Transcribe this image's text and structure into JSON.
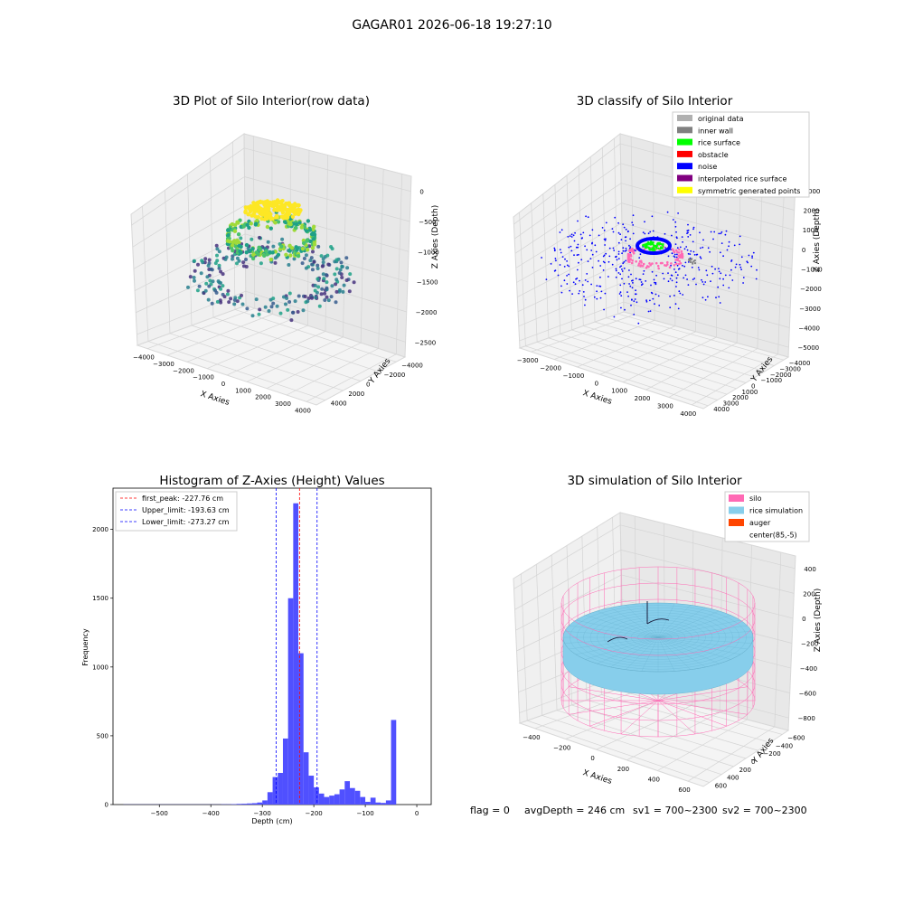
{
  "figure": {
    "suptitle": "GAGAR01 2026-06-18 19:27:10",
    "footer": {
      "flag": "flag = 0",
      "avg": "avgDepth = 246 cm",
      "sv1": "sv1 = 700~2300",
      "sv2": "sv2 = 700~2300"
    }
  },
  "colors": {
    "original": "#b0b0b0",
    "inner_wall": "#808080",
    "rice_surface": "#00ff00",
    "obstacle": "#ff0000",
    "noise": "#0000ff",
    "interp": "#800080",
    "symmetric": "#ffff00",
    "hist_bar": "#5050ff",
    "silo": "#ff69b4",
    "rice_sim": "#87ceeb",
    "auger": "#ff4500"
  },
  "chart_data": [
    {
      "id": "raw",
      "type": "scatter",
      "title": "3D Plot of Silo Interior(row data)",
      "xlabel": "X Axies",
      "ylabel": "Y Axies",
      "zlabel": "Z Axies (Depth)",
      "xticks": [
        "−4000",
        "−3000",
        "−2000",
        "−1000",
        "0",
        "1000",
        "2000",
        "3000",
        "4000"
      ],
      "yticks": [
        "−4000",
        "−2000",
        "0",
        "2000",
        "4000"
      ],
      "zticks": [
        "−2500",
        "−2000",
        "−1500",
        "−1000",
        "−500",
        "0"
      ],
      "xlim": [
        -4000,
        4500
      ],
      "ylim": [
        -4500,
        4500
      ],
      "zlim": [
        -2700,
        100
      ]
    },
    {
      "id": "classify",
      "type": "scatter",
      "title": "3D classify of Silo Interior",
      "xlabel": "X Axies",
      "ylabel": "Y Axies",
      "zlabel": "Z Axies (Depth)",
      "xticks": [
        "−3000",
        "−2000",
        "−1000",
        "0",
        "1000",
        "2000",
        "3000",
        "4000"
      ],
      "yticks": [
        "−4000",
        "−3000",
        "−2000",
        "−1000",
        "0",
        "1000",
        "2000",
        "3000",
        "4000"
      ],
      "zticks": [
        "−5000",
        "−4000",
        "−3000",
        "−2000",
        "−1000",
        "0",
        "1000",
        "2000",
        "3000"
      ],
      "legend": [
        "original data",
        "inner wall",
        "rice surface",
        "obstacle",
        "noise",
        "interpolated rice surface",
        "symmetric generated points"
      ],
      "legend_position": "top-right"
    },
    {
      "id": "hist",
      "type": "bar",
      "title": "Histogram of Z-Axies (Height) Values",
      "xlabel": "Depth (cm)",
      "ylabel": "Frequency",
      "xticks": [
        "−500",
        "−400",
        "−300",
        "−200",
        "−100",
        "0"
      ],
      "xtick_values": [
        -500,
        -400,
        -300,
        -200,
        -100,
        0
      ],
      "yticks": [
        "0",
        "500",
        "1000",
        "1500",
        "2000"
      ],
      "ytick_values": [
        0,
        500,
        1000,
        1500,
        2000
      ],
      "xlim": [
        -590,
        28
      ],
      "ylim": [
        0,
        2300
      ],
      "bin_width": 10,
      "bins": [
        [
          -570,
          1
        ],
        [
          -560,
          1
        ],
        [
          -550,
          1
        ],
        [
          -540,
          1
        ],
        [
          -530,
          1
        ],
        [
          -520,
          1
        ],
        [
          -510,
          1
        ],
        [
          -500,
          1
        ],
        [
          -490,
          1
        ],
        [
          -480,
          1
        ],
        [
          -470,
          1
        ],
        [
          -460,
          1
        ],
        [
          -450,
          1
        ],
        [
          -440,
          1
        ],
        [
          -430,
          1
        ],
        [
          -420,
          1
        ],
        [
          -410,
          1
        ],
        [
          -400,
          1
        ],
        [
          -390,
          1
        ],
        [
          -380,
          2
        ],
        [
          -370,
          2
        ],
        [
          -360,
          3
        ],
        [
          -350,
          5
        ],
        [
          -340,
          6
        ],
        [
          -330,
          8
        ],
        [
          -320,
          10
        ],
        [
          -310,
          15
        ],
        [
          -300,
          30
        ],
        [
          -290,
          90
        ],
        [
          -280,
          200
        ],
        [
          -270,
          230
        ],
        [
          -260,
          480
        ],
        [
          -250,
          1500
        ],
        [
          -240,
          2190
        ],
        [
          -230,
          1100
        ],
        [
          -220,
          380
        ],
        [
          -210,
          210
        ],
        [
          -200,
          125
        ],
        [
          -190,
          80
        ],
        [
          -180,
          55
        ],
        [
          -170,
          65
        ],
        [
          -160,
          75
        ],
        [
          -150,
          110
        ],
        [
          -140,
          170
        ],
        [
          -130,
          120
        ],
        [
          -120,
          100
        ],
        [
          -110,
          55
        ],
        [
          -100,
          20
        ],
        [
          -90,
          50
        ],
        [
          -80,
          15
        ],
        [
          -70,
          12
        ],
        [
          -60,
          30
        ],
        [
          -50,
          615
        ]
      ],
      "lines": [
        {
          "label": "first_peak: -227.76 cm",
          "value": -227.76,
          "color": "#ff0000"
        },
        {
          "label": "Upper_limit: -193.63 cm",
          "value": -193.63,
          "color": "#0000ff"
        },
        {
          "label": "Lower_limit: -273.27 cm",
          "value": -273.27,
          "color": "#0000ff"
        }
      ],
      "legend_position": "top-left"
    },
    {
      "id": "sim",
      "type": "surface",
      "title": "3D simulation of Silo Interior",
      "xlabel": "X Axies",
      "ylabel": "Y Axies",
      "zlabel": "Z Axies (Depth)",
      "xticks": [
        "−400",
        "−200",
        "0",
        "200",
        "400",
        "600"
      ],
      "yticks": [
        "−600",
        "−400",
        "−200",
        "0",
        "200",
        "400",
        "600"
      ],
      "zticks": [
        "−800",
        "−600",
        "−400",
        "−200",
        "0",
        "200",
        "400"
      ],
      "legend": [
        "silo",
        "rice simulation",
        "auger",
        "center(85,-5)"
      ],
      "legend_position": "top-right"
    }
  ]
}
